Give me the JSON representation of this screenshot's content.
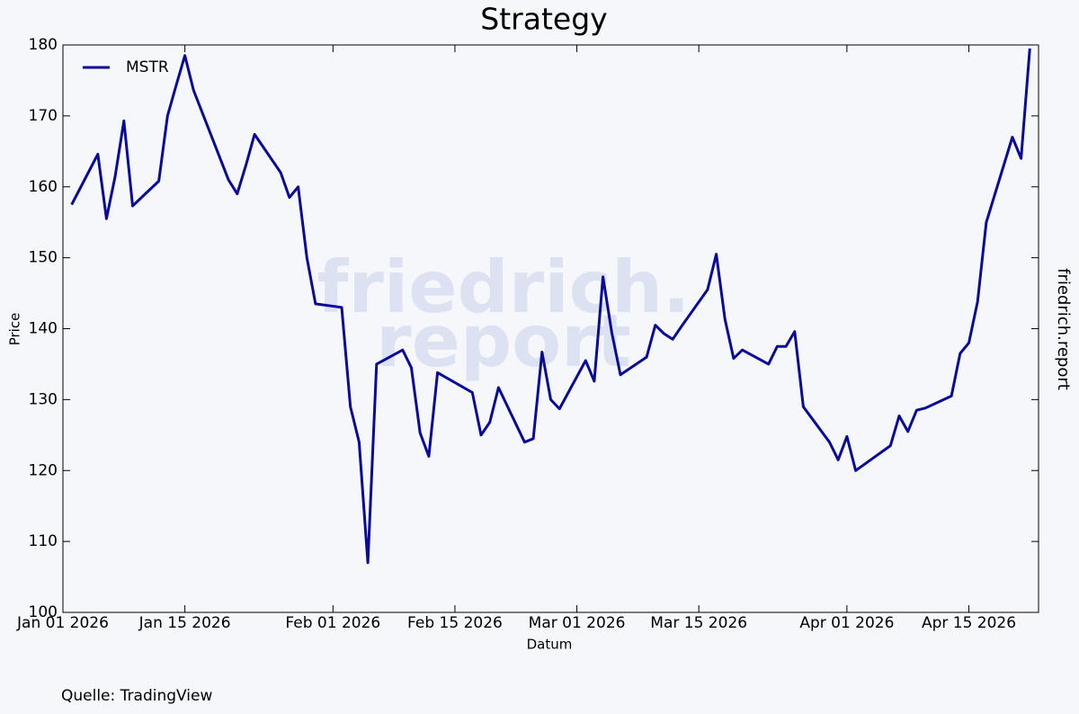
{
  "chart_data": {
    "type": "line",
    "title": "Strategy",
    "xlabel": "Datum",
    "ylabel": "Price",
    "side_label": "friedrich.report",
    "watermark": [
      "friedrich.",
      "report"
    ],
    "source": "Quelle: TradingView",
    "legend": "upper left",
    "x": [
      "2026-01-02",
      "2026-01-05",
      "2026-01-06",
      "2026-01-07",
      "2026-01-08",
      "2026-01-09",
      "2026-01-12",
      "2026-01-13",
      "2026-01-14",
      "2026-01-15",
      "2026-01-16",
      "2026-01-20",
      "2026-01-21",
      "2026-01-22",
      "2026-01-23",
      "2026-01-26",
      "2026-01-27",
      "2026-01-28",
      "2026-01-29",
      "2026-01-30",
      "2026-02-02",
      "2026-02-03",
      "2026-02-04",
      "2026-02-05",
      "2026-02-06",
      "2026-02-09",
      "2026-02-10",
      "2026-02-11",
      "2026-02-12",
      "2026-02-13",
      "2026-02-17",
      "2026-02-18",
      "2026-02-19",
      "2026-02-20",
      "2026-02-23",
      "2026-02-24",
      "2026-02-25",
      "2026-02-26",
      "2026-02-27",
      "2026-03-02",
      "2026-03-03",
      "2026-03-04",
      "2026-03-05",
      "2026-03-06",
      "2026-03-09",
      "2026-03-10",
      "2026-03-11",
      "2026-03-12",
      "2026-03-13",
      "2026-03-16",
      "2026-03-17",
      "2026-03-18",
      "2026-03-19",
      "2026-03-20",
      "2026-03-23",
      "2026-03-24",
      "2026-03-25",
      "2026-03-26",
      "2026-03-27",
      "2026-03-30",
      "2026-03-31",
      "2026-04-01",
      "2026-04-02",
      "2026-04-06",
      "2026-04-07",
      "2026-04-08",
      "2026-04-09",
      "2026-04-10",
      "2026-04-13",
      "2026-04-14",
      "2026-04-15",
      "2026-04-16",
      "2026-04-17",
      "2026-04-20",
      "2026-04-21",
      "2026-04-22"
    ],
    "series": [
      {
        "name": "MSTR",
        "color": "#0a0a9a",
        "values": [
          157.5,
          164.6,
          155.5,
          161.5,
          169.3,
          157.3,
          160.8,
          170,
          174.3,
          178.5,
          173.6,
          161,
          159,
          163,
          167.4,
          162,
          158.5,
          160,
          150,
          143.5,
          143,
          129,
          124,
          107,
          135,
          137,
          134.5,
          125.3,
          122,
          133.8,
          131,
          125,
          126.8,
          131.7,
          124,
          124.5,
          136.7,
          130,
          128.7,
          135.5,
          132.6,
          147.3,
          139.5,
          133.5,
          136,
          140.5,
          139.3,
          138.5,
          140.3,
          145.5,
          150.5,
          141.3,
          135.8,
          137,
          135,
          137.5,
          137.5,
          139.6,
          129,
          124,
          121.5,
          124.8,
          120,
          123.5,
          127.7,
          125.5,
          128.5,
          128.8,
          130.5,
          136.5,
          138,
          143.8,
          155,
          167,
          164,
          179.5
        ]
      }
    ],
    "xlim": [
      "2026-01-01",
      "2026-04-23"
    ],
    "xticks": [
      {
        "value": "2026-01-01",
        "label": "Jan 01 2026"
      },
      {
        "value": "2026-01-15",
        "label": "Jan 15 2026"
      },
      {
        "value": "2026-02-01",
        "label": "Feb 01 2026"
      },
      {
        "value": "2026-02-15",
        "label": "Feb 15 2026"
      },
      {
        "value": "2026-03-01",
        "label": "Mar 01 2026"
      },
      {
        "value": "2026-03-15",
        "label": "Mar 15 2026"
      },
      {
        "value": "2026-04-01",
        "label": "Apr 01 2026"
      },
      {
        "value": "2026-04-15",
        "label": "Apr 15 2026"
      }
    ],
    "ylim": [
      100,
      180
    ],
    "yticks": [
      100,
      110,
      120,
      130,
      140,
      150,
      160,
      170,
      180
    ]
  }
}
